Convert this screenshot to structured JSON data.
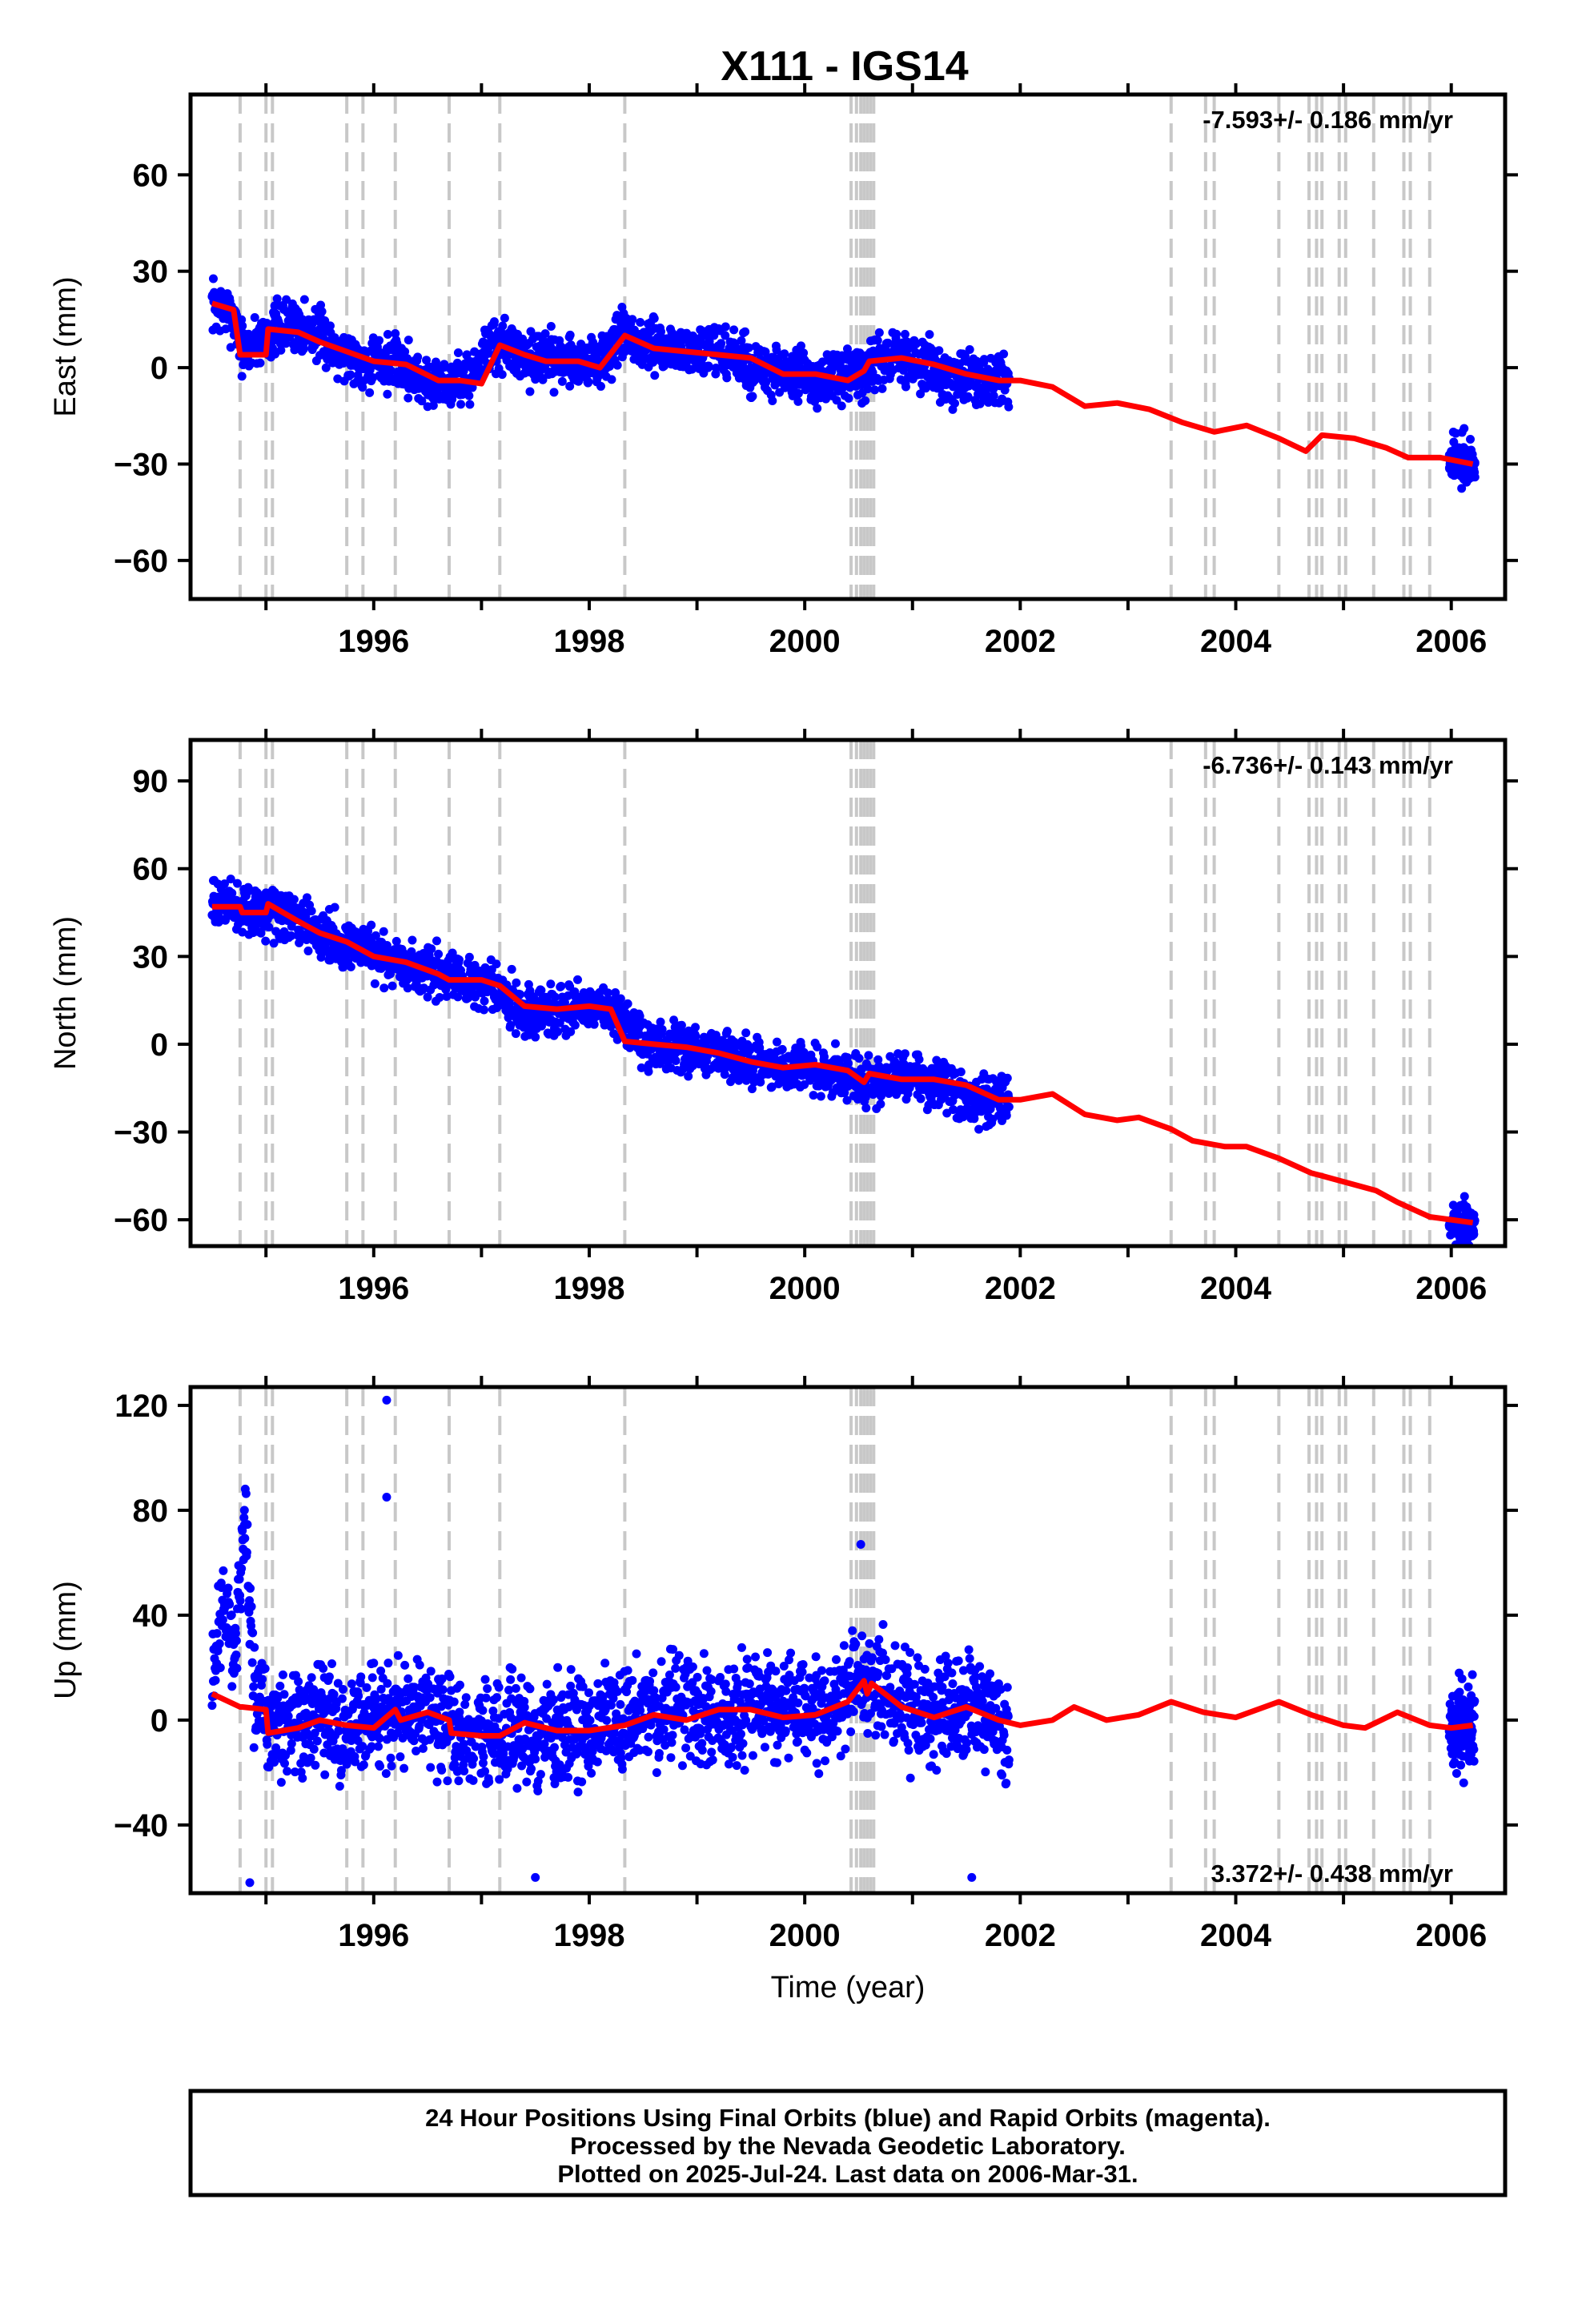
{
  "page_title": "X111 - IGS14",
  "caption": {
    "line1": "24 Hour Positions Using Final Orbits (blue) and Rapid Orbits (magenta).",
    "line2": "Processed by the Nevada Geodetic Laboratory.",
    "line3": "Plotted on 2025-Jul-24. Last data on 2006-Mar-31."
  },
  "colors": {
    "data": "#0000ff",
    "model": "#ff0000",
    "events": "#c8c8c8",
    "frame": "#000000"
  },
  "chart_data": [
    {
      "type": "scatter",
      "title": "X111 - IGS14",
      "xlabel": "",
      "ylabel": "East (mm)",
      "xlim": [
        1994.3,
        2006.5
      ],
      "ylim": [
        -72,
        85
      ],
      "xticks": [
        1996,
        1998,
        2000,
        2002,
        2004,
        2006
      ],
      "yticks": [
        -60,
        -30,
        0,
        30,
        60
      ],
      "rate_label": "-7.593+/- 0.186 mm/yr",
      "rate_position": "top-right",
      "grid": false,
      "series": [
        {
          "name": "24 hr positions, final orbits",
          "color": "#0000ff",
          "x": [
            1994.5,
            1994.6,
            1994.7,
            1994.8,
            1994.9,
            1995.1,
            1995.3,
            1995.5,
            1995.7,
            1995.9,
            1996.1,
            1996.3,
            1996.5,
            1996.7,
            1996.9,
            1997.1,
            1997.3,
            1997.5,
            1997.7,
            1997.9,
            1998.1,
            1998.3,
            1998.5,
            1998.7,
            1998.9,
            1999.1,
            1999.3,
            1999.5,
            1999.7,
            1999.9,
            2000.1,
            2000.3,
            2000.5,
            2000.7,
            2000.9,
            2001.1,
            2001.3,
            2001.5,
            2001.7,
            2001.9,
            2006.0,
            2006.1,
            2006.2
          ],
          "y": [
            20,
            18,
            16,
            4,
            8,
            12,
            14,
            10,
            5,
            2,
            2,
            0,
            -5,
            -4,
            -3,
            8,
            5,
            3,
            3,
            2,
            1,
            9,
            7,
            6,
            5,
            5,
            4,
            0,
            -2,
            -3,
            -3,
            -4,
            -2,
            2,
            3,
            1,
            -2,
            -4,
            -3,
            -4,
            -28,
            -29,
            -30
          ]
        }
      ],
      "model": {
        "x": [
          1994.5,
          1994.7,
          1994.76,
          1994.9,
          1995.0,
          1995.02,
          1995.3,
          1995.5,
          1995.75,
          1996.0,
          1996.3,
          1996.6,
          1996.8,
          1997.0,
          1997.17,
          1997.4,
          1997.6,
          1997.9,
          1998.1,
          1998.33,
          1998.6,
          1998.9,
          1999.2,
          1999.5,
          1999.8,
          2000.1,
          2000.4,
          2000.55,
          2000.6,
          2000.9,
          2001.2,
          2001.5,
          2001.8,
          2002.0,
          2002.3,
          2002.6,
          2002.9,
          2003.2,
          2003.5,
          2003.8,
          2004.1,
          2004.4,
          2004.65,
          2004.8,
          2005.1,
          2005.4,
          2005.6,
          2005.9,
          2006.2
        ],
        "y": [
          20,
          18,
          4,
          4,
          4,
          12,
          11,
          8,
          5,
          2,
          1,
          -4,
          -4,
          -5,
          7,
          4,
          2,
          2,
          0,
          10,
          6,
          5,
          4,
          3,
          -2,
          -2,
          -4,
          -1,
          2,
          3,
          1,
          -2,
          -4,
          -4,
          -6,
          -12,
          -11,
          -13,
          -17,
          -20,
          -18,
          -22,
          -26,
          -21,
          -22,
          -25,
          -28,
          -28,
          -30
        ]
      }
    },
    {
      "type": "scatter",
      "xlabel": "",
      "ylabel": "North (mm)",
      "xlim": [
        1994.3,
        2006.5
      ],
      "ylim": [
        -69,
        104
      ],
      "xticks": [
        1996,
        1998,
        2000,
        2002,
        2004,
        2006
      ],
      "yticks": [
        -60,
        -30,
        0,
        30,
        60,
        90
      ],
      "rate_label": "-6.736+/- 0.143 mm/yr",
      "rate_position": "top-right",
      "grid": false,
      "series": [
        {
          "name": "24 hr positions, final orbits",
          "color": "#0000ff",
          "x": [
            1994.5,
            1994.7,
            1994.9,
            1995.1,
            1995.3,
            1995.5,
            1995.7,
            1995.9,
            1996.1,
            1996.3,
            1996.5,
            1996.7,
            1996.9,
            1997.1,
            1997.3,
            1997.5,
            1997.7,
            1997.9,
            1998.1,
            1998.3,
            1998.5,
            1998.7,
            1998.9,
            1999.1,
            1999.3,
            1999.5,
            1999.7,
            1999.9,
            2000.1,
            2000.3,
            2000.5,
            2000.7,
            2000.9,
            2001.1,
            2001.3,
            2001.5,
            2001.7,
            2001.9,
            2006.0,
            2006.1,
            2006.2
          ],
          "y": [
            48,
            47,
            45,
            46,
            42,
            38,
            35,
            32,
            30,
            27,
            25,
            22,
            21,
            20,
            14,
            12,
            12,
            13,
            13,
            10,
            0,
            -1,
            -1,
            -2,
            -4,
            -7,
            -7,
            -7,
            -8,
            -10,
            -13,
            -12,
            -12,
            -12,
            -15,
            -19,
            -19,
            -19,
            -60,
            -60,
            -62
          ]
        }
      ],
      "model": {
        "x": [
          1994.5,
          1994.76,
          1994.78,
          1995.0,
          1995.02,
          1995.3,
          1995.5,
          1995.75,
          1996.0,
          1996.3,
          1996.6,
          1996.7,
          1997.0,
          1997.17,
          1997.4,
          1997.7,
          1998.0,
          1998.2,
          1998.33,
          1998.6,
          1998.9,
          1999.2,
          1999.5,
          1999.8,
          2000.1,
          2000.4,
          2000.55,
          2000.6,
          2000.9,
          2001.2,
          2001.5,
          2001.8,
          2002.0,
          2002.3,
          2002.6,
          2002.9,
          2003.1,
          2003.4,
          2003.6,
          2003.9,
          2004.1,
          2004.4,
          2004.7,
          2004.8,
          2005.0,
          2005.3,
          2005.5,
          2005.8,
          2006.0,
          2006.2
        ],
        "y": [
          47,
          47,
          45,
          45,
          48,
          42,
          38,
          35,
          30,
          28,
          24,
          22,
          22,
          20,
          13,
          12,
          13,
          12,
          1,
          0,
          -1,
          -3,
          -6,
          -8,
          -7,
          -9,
          -13,
          -10,
          -12,
          -12,
          -14,
          -19,
          -19,
          -17,
          -24,
          -26,
          -25,
          -29,
          -33,
          -35,
          -35,
          -39,
          -44,
          -45,
          -47,
          -50,
          -54,
          -59,
          -60,
          -61
        ]
      }
    },
    {
      "type": "scatter",
      "xlabel": "Time (year)",
      "ylabel": "Up (mm)",
      "xlim": [
        1994.3,
        2006.5
      ],
      "ylim": [
        -66,
        127
      ],
      "xticks": [
        1996,
        1998,
        2000,
        2002,
        2004,
        2006
      ],
      "yticks": [
        -40,
        0,
        40,
        80,
        120
      ],
      "rate_label": "3.372+/- 0.438 mm/yr",
      "rate_position": "bottom-right",
      "grid": false,
      "series": [
        {
          "name": "24 hr positions, final orbits",
          "color": "#0000ff",
          "x": [
            1994.5,
            1994.6,
            1994.7,
            1994.8,
            1994.9,
            1995.1,
            1995.3,
            1995.5,
            1995.7,
            1995.9,
            1996.1,
            1996.3,
            1996.5,
            1996.7,
            1996.9,
            1997.1,
            1997.3,
            1997.5,
            1997.7,
            1997.9,
            1998.1,
            1998.3,
            1998.5,
            1998.7,
            1998.9,
            1999.1,
            1999.3,
            1999.5,
            1999.7,
            1999.9,
            2000.1,
            2000.3,
            2000.5,
            2000.7,
            2000.9,
            2001.1,
            2001.3,
            2001.5,
            2001.7,
            2001.9,
            2006.0,
            2006.1,
            2006.2
          ],
          "y": [
            10,
            50,
            20,
            80,
            5,
            -2,
            0,
            2,
            -5,
            -2,
            2,
            3,
            5,
            -5,
            -6,
            -6,
            -3,
            -4,
            -4,
            -3,
            -2,
            0,
            2,
            3,
            5,
            0,
            2,
            5,
            3,
            2,
            2,
            5,
            15,
            12,
            5,
            0,
            2,
            5,
            0,
            -2,
            -2,
            -2,
            -3
          ]
        },
        {
          "name": "outliers",
          "color": "#0000ff",
          "x": [
            1994.8,
            1996.12,
            1996.12,
            2000.52,
            1997.5,
            2001.55,
            1994.85
          ],
          "y": [
            80,
            122,
            85,
            67,
            -60,
            -60,
            -62
          ]
        }
      ],
      "model": {
        "x": [
          1994.5,
          1994.76,
          1994.78,
          1995.0,
          1995.02,
          1995.3,
          1995.5,
          1995.75,
          1996.0,
          1996.2,
          1996.25,
          1996.5,
          1996.7,
          1996.72,
          1997.0,
          1997.17,
          1997.4,
          1997.7,
          1998.0,
          1998.33,
          1998.6,
          1998.9,
          1999.2,
          1999.5,
          1999.8,
          2000.1,
          2000.4,
          2000.55,
          2000.58,
          2000.62,
          2000.9,
          2001.2,
          2001.5,
          2001.8,
          2002.0,
          2002.3,
          2002.5,
          2002.8,
          2003.1,
          2003.4,
          2003.7,
          2004.0,
          2004.4,
          2004.7,
          2005.0,
          2005.2,
          2005.5,
          2005.8,
          2006.0,
          2006.2
        ],
        "y": [
          10,
          5,
          5,
          4,
          -5,
          -3,
          0,
          -2,
          -3,
          4,
          0,
          3,
          0,
          -5,
          -6,
          -6,
          -1,
          -4,
          -4,
          -2,
          2,
          0,
          4,
          4,
          1,
          2,
          7,
          15,
          10,
          14,
          5,
          1,
          5,
          0,
          -2,
          0,
          5,
          0,
          2,
          7,
          3,
          1,
          7,
          2,
          -2,
          -3,
          3,
          -2,
          -3,
          -2
        ]
      }
    }
  ],
  "event_lines": [
    1994.76,
    1995.0,
    1995.06,
    1995.75,
    1995.9,
    1996.2,
    1996.7,
    1997.17,
    1998.33,
    2000.43,
    2000.48,
    2000.52,
    2000.55,
    2000.58,
    2000.61,
    2000.64,
    2003.4,
    2003.72,
    2003.8,
    2004.4,
    2004.68,
    2004.75,
    2004.8,
    2004.96,
    2005.02,
    2005.28,
    2005.56,
    2005.62,
    2005.8
  ]
}
